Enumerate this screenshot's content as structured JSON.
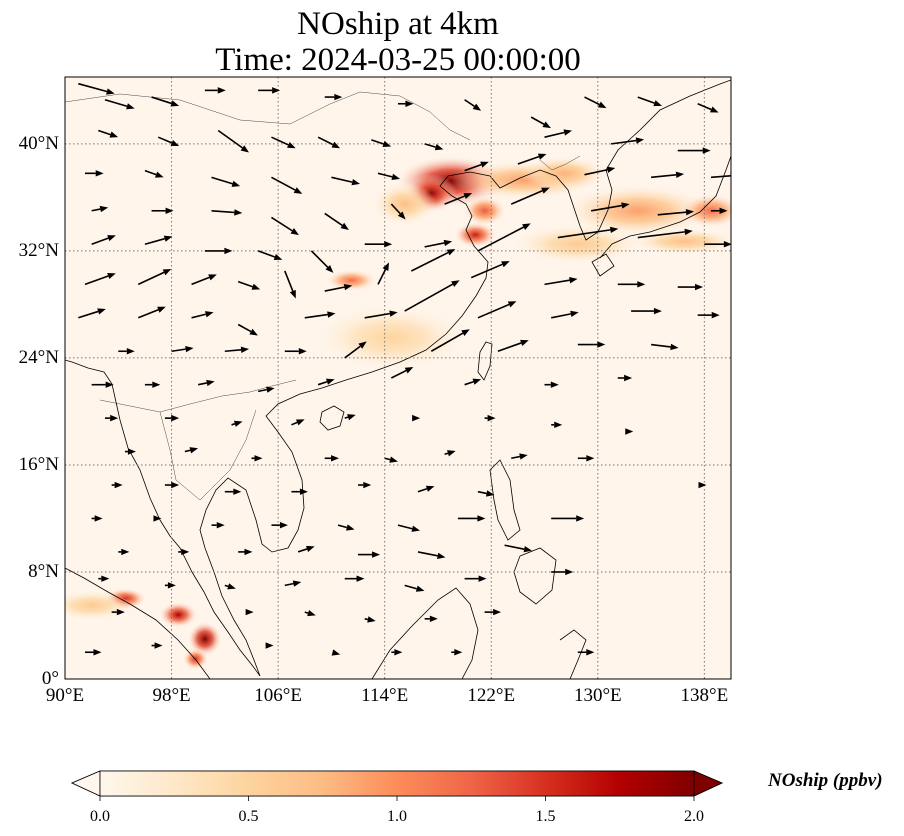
{
  "title_line1": "NOship at 4km",
  "title_line2": "Time: 2024-03-25 00:00:00",
  "map": {
    "lon_range": [
      90,
      140
    ],
    "lat_range": [
      0,
      45
    ],
    "lat_ticks": [
      {
        "value": 40,
        "label": "40°N"
      },
      {
        "value": 32,
        "label": "32°N"
      },
      {
        "value": 24,
        "label": "24°N"
      },
      {
        "value": 16,
        "label": "16°N"
      },
      {
        "value": 8,
        "label": "8°N"
      },
      {
        "value": 0,
        "label": "0°"
      }
    ],
    "lon_ticks": [
      {
        "value": 90,
        "label": "90°E"
      },
      {
        "value": 98,
        "label": "98°E"
      },
      {
        "value": 106,
        "label": "106°E"
      },
      {
        "value": 114,
        "label": "114°E"
      },
      {
        "value": 122,
        "label": "122°E"
      },
      {
        "value": 130,
        "label": "130°E"
      },
      {
        "value": 138,
        "label": "138°E"
      }
    ],
    "gridlines": true,
    "background_color": "#fff5eb"
  },
  "colorbar": {
    "label": "NOship (ppbv)",
    "range": [
      0.0,
      2.0
    ],
    "ticks": [
      "0.0",
      "0.5",
      "1.0",
      "1.5",
      "2.0"
    ],
    "colormap": "OrRd",
    "colors": [
      "#fff7ec",
      "#fee8c8",
      "#fdd49e",
      "#fdbb84",
      "#fc8d59",
      "#ef6548",
      "#d7301f",
      "#b30000",
      "#7f0000"
    ],
    "extend": "both"
  },
  "concentration_hotspots": [
    {
      "lon": 119.0,
      "lat": 37.2,
      "value": 2.0,
      "r_lon": 2.6,
      "r_lat": 1.2
    },
    {
      "lon": 117.5,
      "lat": 36.3,
      "value": 1.9,
      "r_lon": 1.2,
      "r_lat": 0.9
    },
    {
      "lon": 121.5,
      "lat": 35.0,
      "value": 1.3,
      "r_lon": 1.0,
      "r_lat": 0.7
    },
    {
      "lon": 120.8,
      "lat": 33.2,
      "value": 1.6,
      "r_lon": 1.0,
      "r_lat": 0.6
    },
    {
      "lon": 124.5,
      "lat": 37.3,
      "value": 0.9,
      "r_lon": 3.5,
      "r_lat": 0.9
    },
    {
      "lon": 127.5,
      "lat": 37.8,
      "value": 0.8,
      "r_lon": 2.0,
      "r_lat": 0.8
    },
    {
      "lon": 133.0,
      "lat": 35.0,
      "value": 0.9,
      "r_lon": 3.5,
      "r_lat": 1.2
    },
    {
      "lon": 138.5,
      "lat": 35.0,
      "value": 1.2,
      "r_lon": 1.5,
      "r_lat": 0.8
    },
    {
      "lon": 128.5,
      "lat": 32.5,
      "value": 0.6,
      "r_lon": 3.0,
      "r_lat": 0.9
    },
    {
      "lon": 136.5,
      "lat": 32.7,
      "value": 0.7,
      "r_lon": 2.5,
      "r_lat": 0.6
    },
    {
      "lon": 111.5,
      "lat": 29.8,
      "value": 1.2,
      "r_lon": 1.2,
      "r_lat": 0.5
    },
    {
      "lon": 115.5,
      "lat": 35.5,
      "value": 0.7,
      "r_lon": 1.5,
      "r_lat": 1.0
    },
    {
      "lon": 114.5,
      "lat": 25.5,
      "value": 0.5,
      "r_lon": 3.5,
      "r_lat": 1.5
    },
    {
      "lon": 94.5,
      "lat": 6.0,
      "value": 1.6,
      "r_lon": 1.0,
      "r_lat": 0.5
    },
    {
      "lon": 98.5,
      "lat": 4.8,
      "value": 1.8,
      "r_lon": 0.9,
      "r_lat": 0.6
    },
    {
      "lon": 100.5,
      "lat": 3.0,
      "value": 2.0,
      "r_lon": 0.8,
      "r_lat": 0.8
    },
    {
      "lon": 99.8,
      "lat": 1.5,
      "value": 1.5,
      "r_lon": 0.6,
      "r_lat": 0.5
    },
    {
      "lon": 92.0,
      "lat": 5.5,
      "value": 0.6,
      "r_lon": 2.0,
      "r_lat": 0.7
    }
  ],
  "wind_vectors": [
    {
      "lon": 91.0,
      "lat": 44.5,
      "u": 3.3,
      "v": -0.9
    },
    {
      "lon": 93.0,
      "lat": 43.3,
      "u": 2.7,
      "v": -0.8
    },
    {
      "lon": 96.5,
      "lat": 43.5,
      "u": 2.5,
      "v": -0.8
    },
    {
      "lon": 100.5,
      "lat": 44.0,
      "u": 1.9,
      "v": 0.0
    },
    {
      "lon": 104.5,
      "lat": 44.0,
      "u": 2.0,
      "v": 0.0
    },
    {
      "lon": 109.5,
      "lat": 43.5,
      "u": 1.6,
      "v": 0.0
    },
    {
      "lon": 115.0,
      "lat": 43.0,
      "u": 1.4,
      "v": 0.0
    },
    {
      "lon": 120.0,
      "lat": 43.3,
      "u": 1.5,
      "v": -1.0
    },
    {
      "lon": 125.0,
      "lat": 42.0,
      "u": 1.8,
      "v": -1.0
    },
    {
      "lon": 129.0,
      "lat": 43.5,
      "u": 2.0,
      "v": -1.0
    },
    {
      "lon": 133.0,
      "lat": 43.5,
      "u": 2.2,
      "v": -0.8
    },
    {
      "lon": 137.5,
      "lat": 43.0,
      "u": 1.9,
      "v": -0.8
    },
    {
      "lon": 92.5,
      "lat": 41.0,
      "u": 1.8,
      "v": -0.6
    },
    {
      "lon": 97.0,
      "lat": 40.5,
      "u": 1.9,
      "v": -0.8
    },
    {
      "lon": 101.5,
      "lat": 41.0,
      "u": 2.8,
      "v": -2.0
    },
    {
      "lon": 105.5,
      "lat": 40.5,
      "u": 2.2,
      "v": -1.0
    },
    {
      "lon": 109.0,
      "lat": 40.5,
      "u": 2.0,
      "v": -1.0
    },
    {
      "lon": 113.0,
      "lat": 40.3,
      "u": 1.8,
      "v": -0.6
    },
    {
      "lon": 117.0,
      "lat": 40.0,
      "u": 1.7,
      "v": -0.5
    },
    {
      "lon": 126.0,
      "lat": 40.5,
      "u": 2.5,
      "v": 0.6
    },
    {
      "lon": 131.0,
      "lat": 40.0,
      "u": 3.0,
      "v": 0.4
    },
    {
      "lon": 136.0,
      "lat": 39.5,
      "u": 3.0,
      "v": 0.0
    },
    {
      "lon": 91.5,
      "lat": 37.8,
      "u": 1.7,
      "v": 0.0
    },
    {
      "lon": 96.0,
      "lat": 38.0,
      "u": 1.7,
      "v": -0.6
    },
    {
      "lon": 101.0,
      "lat": 37.5,
      "u": 2.6,
      "v": -0.8
    },
    {
      "lon": 105.5,
      "lat": 37.5,
      "u": 2.8,
      "v": -1.5
    },
    {
      "lon": 110.0,
      "lat": 37.5,
      "u": 2.6,
      "v": -0.6
    },
    {
      "lon": 113.5,
      "lat": 37.8,
      "u": 2.0,
      "v": -0.5
    },
    {
      "lon": 120.0,
      "lat": 38.0,
      "u": 2.2,
      "v": 0.8
    },
    {
      "lon": 124.0,
      "lat": 38.5,
      "u": 2.6,
      "v": 0.9
    },
    {
      "lon": 129.0,
      "lat": 37.7,
      "u": 2.8,
      "v": 0.6
    },
    {
      "lon": 134.0,
      "lat": 37.5,
      "u": 3.0,
      "v": 0.3
    },
    {
      "lon": 138.5,
      "lat": 37.5,
      "u": 2.5,
      "v": 0.2
    },
    {
      "lon": 92.0,
      "lat": 35.0,
      "u": 1.5,
      "v": 0.3
    },
    {
      "lon": 96.5,
      "lat": 35.0,
      "u": 2.0,
      "v": 0.0
    },
    {
      "lon": 101.0,
      "lat": 35.0,
      "u": 2.8,
      "v": -0.2
    },
    {
      "lon": 105.5,
      "lat": 34.5,
      "u": 2.5,
      "v": -1.6
    },
    {
      "lon": 109.5,
      "lat": 34.8,
      "u": 2.2,
      "v": -1.5
    },
    {
      "lon": 114.5,
      "lat": 35.5,
      "u": 1.3,
      "v": -1.4
    },
    {
      "lon": 118.5,
      "lat": 35.5,
      "u": 2.5,
      "v": 1.0
    },
    {
      "lon": 123.5,
      "lat": 35.5,
      "u": 3.5,
      "v": 1.5
    },
    {
      "lon": 129.5,
      "lat": 35.0,
      "u": 3.5,
      "v": 0.6
    },
    {
      "lon": 134.5,
      "lat": 34.7,
      "u": 3.3,
      "v": 0.3
    },
    {
      "lon": 138.5,
      "lat": 35.0,
      "u": 1.5,
      "v": 0.0
    },
    {
      "lon": 92.0,
      "lat": 32.5,
      "u": 2.2,
      "v": 0.8
    },
    {
      "lon": 96.0,
      "lat": 32.5,
      "u": 2.5,
      "v": 0.7
    },
    {
      "lon": 100.5,
      "lat": 32.0,
      "u": 2.5,
      "v": 0.0
    },
    {
      "lon": 104.5,
      "lat": 32.0,
      "u": 2.2,
      "v": -0.8
    },
    {
      "lon": 108.5,
      "lat": 32.0,
      "u": 2.0,
      "v": -2.0
    },
    {
      "lon": 112.5,
      "lat": 32.5,
      "u": 2.5,
      "v": 0.0
    },
    {
      "lon": 117.0,
      "lat": 32.3,
      "u": 2.5,
      "v": 0.5
    },
    {
      "lon": 121.0,
      "lat": 32.0,
      "u": 4.8,
      "v": 2.5
    },
    {
      "lon": 127.0,
      "lat": 33.0,
      "u": 5.5,
      "v": 0.8
    },
    {
      "lon": 133.0,
      "lat": 33.0,
      "u": 5.0,
      "v": 0.6
    },
    {
      "lon": 138.0,
      "lat": 32.5,
      "u": 2.5,
      "v": 0.0
    },
    {
      "lon": 91.5,
      "lat": 29.5,
      "u": 2.8,
      "v": 1.0
    },
    {
      "lon": 95.5,
      "lat": 29.5,
      "u": 3.0,
      "v": 1.4
    },
    {
      "lon": 99.5,
      "lat": 29.5,
      "u": 2.3,
      "v": 0.9
    },
    {
      "lon": 103.0,
      "lat": 29.7,
      "u": 2.0,
      "v": -0.7
    },
    {
      "lon": 106.5,
      "lat": 30.5,
      "u": 1.0,
      "v": -2.5
    },
    {
      "lon": 109.5,
      "lat": 29.0,
      "u": 2.5,
      "v": 0.5
    },
    {
      "lon": 113.5,
      "lat": 29.5,
      "u": 1.0,
      "v": 2.0
    },
    {
      "lon": 116.0,
      "lat": 30.5,
      "u": 4.0,
      "v": 2.0
    },
    {
      "lon": 120.5,
      "lat": 30.0,
      "u": 3.5,
      "v": 1.5
    },
    {
      "lon": 126.0,
      "lat": 29.5,
      "u": 3.0,
      "v": 0.5
    },
    {
      "lon": 131.5,
      "lat": 29.5,
      "u": 2.5,
      "v": 0.0
    },
    {
      "lon": 136.0,
      "lat": 29.3,
      "u": 2.3,
      "v": 0.0
    },
    {
      "lon": 91.0,
      "lat": 27.0,
      "u": 2.5,
      "v": 0.8
    },
    {
      "lon": 95.5,
      "lat": 27.0,
      "u": 2.5,
      "v": 1.0
    },
    {
      "lon": 99.5,
      "lat": 27.0,
      "u": 2.0,
      "v": 0.5
    },
    {
      "lon": 103.0,
      "lat": 26.5,
      "u": 1.8,
      "v": -1.0
    },
    {
      "lon": 108.0,
      "lat": 27.0,
      "u": 2.8,
      "v": 0.4
    },
    {
      "lon": 112.5,
      "lat": 27.0,
      "u": 3.0,
      "v": 0.5
    },
    {
      "lon": 115.5,
      "lat": 27.5,
      "u": 5.0,
      "v": 2.8
    },
    {
      "lon": 121.0,
      "lat": 27.0,
      "u": 3.5,
      "v": 1.5
    },
    {
      "lon": 126.5,
      "lat": 27.0,
      "u": 2.5,
      "v": 0.5
    },
    {
      "lon": 132.5,
      "lat": 27.5,
      "u": 2.8,
      "v": 0.0
    },
    {
      "lon": 137.5,
      "lat": 27.2,
      "u": 2.0,
      "v": 0.0
    },
    {
      "lon": 94.0,
      "lat": 24.5,
      "u": 1.5,
      "v": 0.0
    },
    {
      "lon": 98.0,
      "lat": 24.5,
      "u": 2.0,
      "v": 0.3
    },
    {
      "lon": 102.0,
      "lat": 24.5,
      "u": 2.2,
      "v": 0.2
    },
    {
      "lon": 106.5,
      "lat": 24.5,
      "u": 2.0,
      "v": 0.0
    },
    {
      "lon": 111.0,
      "lat": 24.0,
      "u": 2.0,
      "v": 1.5
    },
    {
      "lon": 117.5,
      "lat": 24.5,
      "u": 3.5,
      "v": 2.0
    },
    {
      "lon": 122.5,
      "lat": 24.5,
      "u": 2.8,
      "v": 1.0
    },
    {
      "lon": 128.5,
      "lat": 25.0,
      "u": 2.5,
      "v": 0.0
    },
    {
      "lon": 134.0,
      "lat": 25.0,
      "u": 2.5,
      "v": -0.3
    },
    {
      "lon": 92.0,
      "lat": 22.0,
      "u": 2.0,
      "v": 0.0
    },
    {
      "lon": 96.0,
      "lat": 22.0,
      "u": 1.4,
      "v": 0.0
    },
    {
      "lon": 100.0,
      "lat": 22.0,
      "u": 1.5,
      "v": 0.3
    },
    {
      "lon": 104.5,
      "lat": 21.5,
      "u": 1.5,
      "v": 0.3
    },
    {
      "lon": 109.0,
      "lat": 22.0,
      "u": 1.5,
      "v": 0.5
    },
    {
      "lon": 114.5,
      "lat": 22.5,
      "u": 2.0,
      "v": 1.0
    },
    {
      "lon": 120.0,
      "lat": 22.0,
      "u": 1.5,
      "v": 0.5
    },
    {
      "lon": 126.0,
      "lat": 22.0,
      "u": 1.3,
      "v": 0.0
    },
    {
      "lon": 131.5,
      "lat": 22.5,
      "u": 1.3,
      "v": 0.0
    },
    {
      "lon": 93.0,
      "lat": 19.5,
      "u": 1.2,
      "v": 0.0
    },
    {
      "lon": 97.5,
      "lat": 19.5,
      "u": 1.3,
      "v": 0.0
    },
    {
      "lon": 102.5,
      "lat": 19.0,
      "u": 1.0,
      "v": 0.3
    },
    {
      "lon": 107.0,
      "lat": 19.0,
      "u": 1.2,
      "v": 0.5
    },
    {
      "lon": 111.0,
      "lat": 19.5,
      "u": 1.0,
      "v": 0.3
    },
    {
      "lon": 116.0,
      "lat": 19.5,
      "u": 0.8,
      "v": 0.0
    },
    {
      "lon": 121.5,
      "lat": 19.5,
      "u": 1.0,
      "v": 0.0
    },
    {
      "lon": 126.5,
      "lat": 19.0,
      "u": 1.0,
      "v": 0.0
    },
    {
      "lon": 132.0,
      "lat": 18.5,
      "u": 0.8,
      "v": 0.0
    },
    {
      "lon": 94.5,
      "lat": 17.0,
      "u": 1.0,
      "v": 0.0
    },
    {
      "lon": 99.0,
      "lat": 17.0,
      "u": 1.2,
      "v": 0.3
    },
    {
      "lon": 104.0,
      "lat": 16.5,
      "u": 1.0,
      "v": 0.0
    },
    {
      "lon": 109.5,
      "lat": 16.5,
      "u": 1.3,
      "v": 0.0
    },
    {
      "lon": 114.0,
      "lat": 16.5,
      "u": 1.2,
      "v": -0.3
    },
    {
      "lon": 118.5,
      "lat": 16.8,
      "u": 1.0,
      "v": 0.3
    },
    {
      "lon": 123.5,
      "lat": 16.5,
      "u": 1.5,
      "v": 0.3
    },
    {
      "lon": 128.5,
      "lat": 16.5,
      "u": 1.5,
      "v": 0.0
    },
    {
      "lon": 137.5,
      "lat": 14.5,
      "u": 0.8,
      "v": 0.0
    },
    {
      "lon": 93.5,
      "lat": 14.5,
      "u": 1.0,
      "v": 0.0
    },
    {
      "lon": 97.5,
      "lat": 14.5,
      "u": 1.3,
      "v": 0.0
    },
    {
      "lon": 102.0,
      "lat": 14.0,
      "u": 1.5,
      "v": 0.0
    },
    {
      "lon": 107.0,
      "lat": 14.0,
      "u": 1.5,
      "v": 0.0
    },
    {
      "lon": 112.0,
      "lat": 14.5,
      "u": 1.2,
      "v": 0.0
    },
    {
      "lon": 116.5,
      "lat": 14.0,
      "u": 1.5,
      "v": 0.5
    },
    {
      "lon": 121.0,
      "lat": 14.0,
      "u": 1.5,
      "v": -0.3
    },
    {
      "lon": 126.5,
      "lat": 12.0,
      "u": 3.0,
      "v": 0.0
    },
    {
      "lon": 92.0,
      "lat": 12.0,
      "u": 1.0,
      "v": 0.0
    },
    {
      "lon": 96.5,
      "lat": 12.0,
      "u": 0.9,
      "v": 0.0
    },
    {
      "lon": 101.0,
      "lat": 11.5,
      "u": 1.2,
      "v": 0.0
    },
    {
      "lon": 105.5,
      "lat": 11.5,
      "u": 1.5,
      "v": 0.0
    },
    {
      "lon": 110.5,
      "lat": 11.5,
      "u": 1.5,
      "v": -0.4
    },
    {
      "lon": 115.0,
      "lat": 11.5,
      "u": 2.0,
      "v": -0.5
    },
    {
      "lon": 119.5,
      "lat": 12.0,
      "u": 2.5,
      "v": 0.0
    },
    {
      "lon": 123.0,
      "lat": 10.0,
      "u": 2.5,
      "v": -0.5
    },
    {
      "lon": 94.0,
      "lat": 9.5,
      "u": 1.0,
      "v": 0.0
    },
    {
      "lon": 98.5,
      "lat": 9.5,
      "u": 1.0,
      "v": 0.0
    },
    {
      "lon": 103.0,
      "lat": 9.5,
      "u": 1.3,
      "v": 0.0
    },
    {
      "lon": 107.5,
      "lat": 9.5,
      "u": 1.5,
      "v": 0.5
    },
    {
      "lon": 112.0,
      "lat": 9.3,
      "u": 2.0,
      "v": 0.0
    },
    {
      "lon": 116.5,
      "lat": 9.5,
      "u": 2.5,
      "v": -0.5
    },
    {
      "lon": 126.5,
      "lat": 8.0,
      "u": 2.0,
      "v": 0.0
    },
    {
      "lon": 92.5,
      "lat": 7.5,
      "u": 1.0,
      "v": 0.0
    },
    {
      "lon": 97.5,
      "lat": 7.0,
      "u": 1.0,
      "v": 0.0
    },
    {
      "lon": 102.0,
      "lat": 7.0,
      "u": 1.0,
      "v": -0.3
    },
    {
      "lon": 106.5,
      "lat": 7.0,
      "u": 1.5,
      "v": 0.3
    },
    {
      "lon": 111.0,
      "lat": 7.5,
      "u": 1.8,
      "v": 0.0
    },
    {
      "lon": 115.5,
      "lat": 7.0,
      "u": 1.8,
      "v": -0.5
    },
    {
      "lon": 120.0,
      "lat": 7.5,
      "u": 2.0,
      "v": 0.0
    },
    {
      "lon": 93.5,
      "lat": 5.0,
      "u": 1.2,
      "v": 0.0
    },
    {
      "lon": 103.5,
      "lat": 5.0,
      "u": 0.8,
      "v": 0.0
    },
    {
      "lon": 108.0,
      "lat": 5.0,
      "u": 1.0,
      "v": -0.3
    },
    {
      "lon": 112.5,
      "lat": 4.5,
      "u": 1.0,
      "v": -0.2
    },
    {
      "lon": 117.0,
      "lat": 4.5,
      "u": 1.2,
      "v": 0.0
    },
    {
      "lon": 121.5,
      "lat": 5.0,
      "u": 1.5,
      "v": 0.0
    },
    {
      "lon": 91.5,
      "lat": 2.0,
      "u": 1.5,
      "v": 0.0
    },
    {
      "lon": 96.5,
      "lat": 2.5,
      "u": 1.0,
      "v": 0.0
    },
    {
      "lon": 105.0,
      "lat": 2.5,
      "u": 0.8,
      "v": 0.0
    },
    {
      "lon": 110.0,
      "lat": 2.0,
      "u": 0.8,
      "v": -0.2
    },
    {
      "lon": 114.5,
      "lat": 2.0,
      "u": 1.0,
      "v": 0.0
    },
    {
      "lon": 119.0,
      "lat": 2.0,
      "u": 1.0,
      "v": 0.0
    },
    {
      "lon": 128.5,
      "lat": 2.0,
      "u": 1.5,
      "v": 0.0
    }
  ]
}
